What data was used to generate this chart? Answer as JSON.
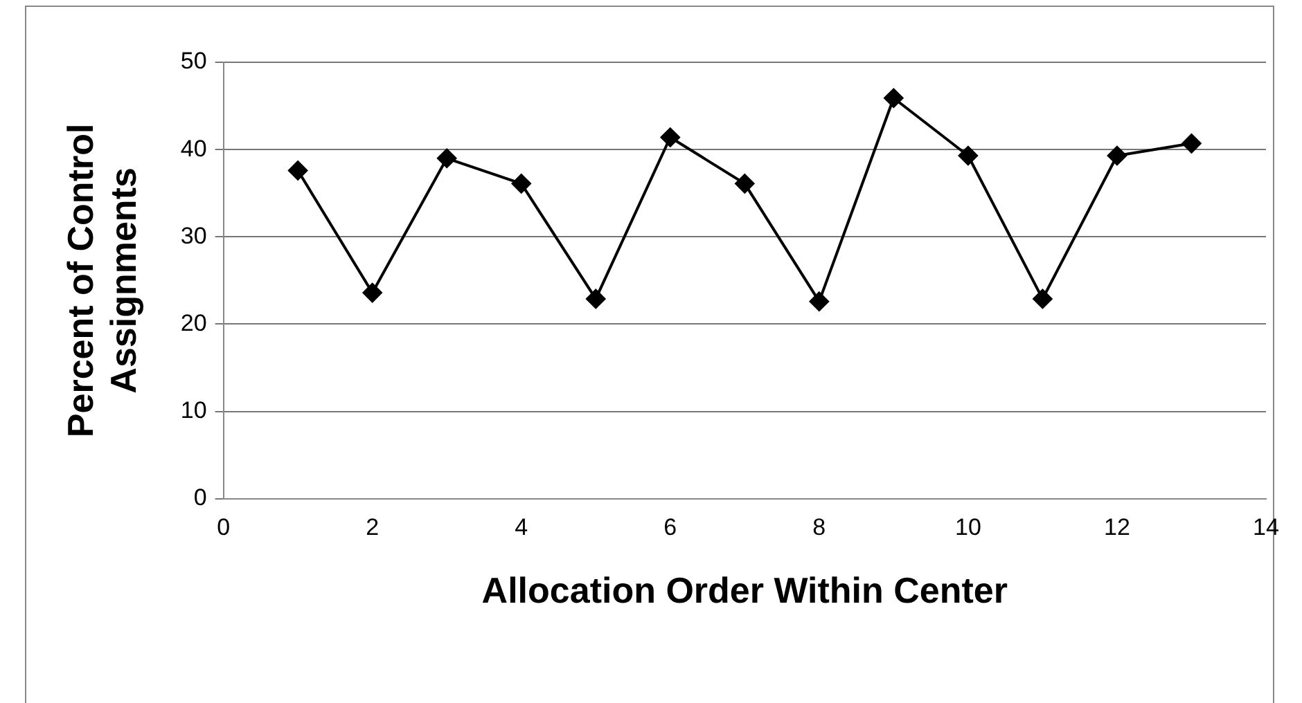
{
  "chart_data": {
    "type": "line",
    "xlabel": "Allocation Order Within Center",
    "ylabel": "Percent of Control Assignments",
    "x": [
      1,
      2,
      3,
      4,
      5,
      6,
      7,
      8,
      9,
      10,
      11,
      12,
      13
    ],
    "series": [
      {
        "color": "#000000",
        "values": [
          37.6,
          23.6,
          39.0,
          36.1,
          22.9,
          41.4,
          36.1,
          22.6,
          45.9,
          39.3,
          22.9,
          39.3,
          40.7
        ]
      }
    ],
    "xlim": [
      0,
      14
    ],
    "xticks": [
      0,
      2,
      4,
      6,
      8,
      10,
      12,
      14
    ],
    "ylim": [
      0,
      50
    ],
    "yticks": [
      0,
      10,
      20,
      30,
      40,
      50
    ],
    "grid": "y",
    "legend": false,
    "marker": "diamond",
    "line_style": "solid"
  }
}
